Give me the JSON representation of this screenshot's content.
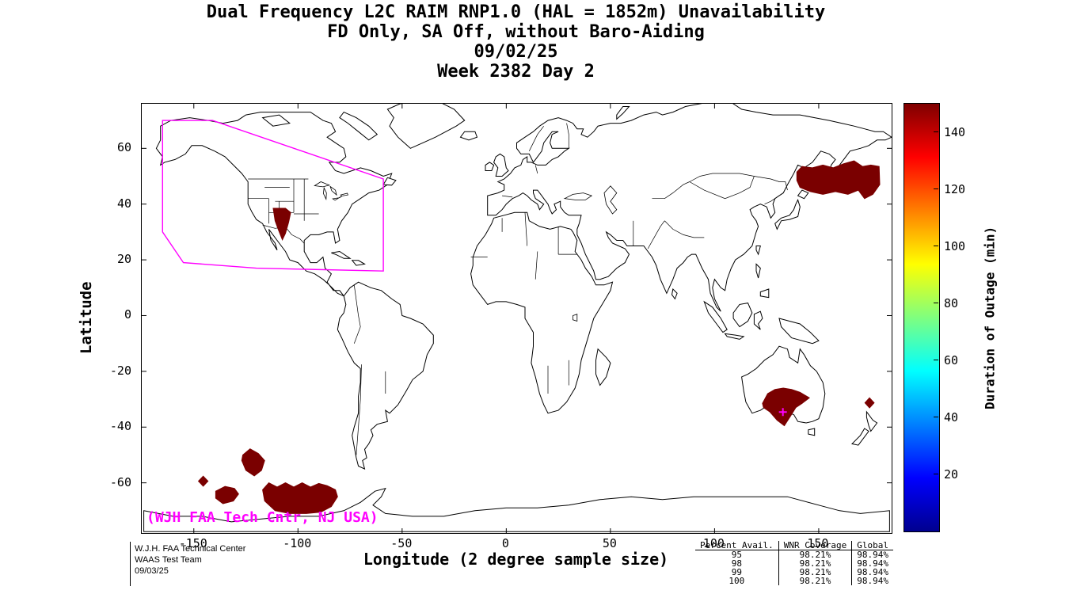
{
  "title": {
    "line1": "Dual Frequency L2C RAIM RNP1.0 (HAL = 1852m) Unavailability",
    "line2": "FD Only, SA Off, without Baro-Aiding",
    "line3": "09/02/25",
    "line4": "Week 2382 Day 2"
  },
  "credit": {
    "line1": "W.J.H. FAA Technical Center",
    "line2": "WAAS Test Team",
    "line3": "09/03/25"
  },
  "stats_table": {
    "columns": [
      "Percent Avail.",
      "WNR Coverage",
      "Global"
    ],
    "rows": [
      [
        "95",
        "98.21%",
        "98.94%"
      ],
      [
        "98",
        "98.21%",
        "98.94%"
      ],
      [
        "99",
        "98.21%",
        "98.94%"
      ],
      [
        "100",
        "98.21%",
        "98.94%"
      ]
    ]
  },
  "chart_data": {
    "type": "map",
    "projection": {
      "lon_range": [
        -175,
        185
      ],
      "lat_range": [
        -78,
        76
      ]
    },
    "x_axis": {
      "label": "Longitude (2 degree sample size)",
      "ticks": [
        -150,
        -100,
        -50,
        0,
        50,
        100,
        150
      ]
    },
    "y_axis": {
      "label": "Latitude",
      "ticks": [
        60,
        40,
        20,
        0,
        -20,
        -40,
        -60
      ]
    },
    "colorbar": {
      "label": "Duration of Outage (min)",
      "ticks": [
        20,
        40,
        60,
        80,
        100,
        120,
        140
      ],
      "value_range": [
        0,
        150
      ],
      "colormap": "jet",
      "stops": [
        [
          0,
          "#00008f"
        ],
        [
          0.125,
          "#0000ff"
        ],
        [
          0.375,
          "#00ffff"
        ],
        [
          0.5,
          "#7fff7f"
        ],
        [
          0.625,
          "#ffff00"
        ],
        [
          0.875,
          "#ff0000"
        ],
        [
          1,
          "#7f0000"
        ]
      ]
    },
    "annotation": {
      "text": "(WJH FAA Tech Cntr, NJ USA)",
      "color": "#ff00ff"
    },
    "colors": {
      "outage": "#7a0000",
      "boundary": "#ff00ff",
      "coast": "#000000"
    },
    "waas_boundary": [
      [
        -165,
        70
      ],
      [
        -141,
        70
      ],
      [
        -59,
        49
      ],
      [
        -59,
        16
      ],
      [
        -120,
        17
      ],
      [
        -155,
        19
      ],
      [
        -165,
        30
      ]
    ],
    "station_marker": {
      "lon": 132.8,
      "lat": -34.6
    },
    "outage_regions": [
      {
        "name": "us-southwest",
        "polygon": [
          [
            -111.9,
            38.5
          ],
          [
            -106,
            38.5
          ],
          [
            -103.5,
            37
          ],
          [
            -104.5,
            33.5
          ],
          [
            -106,
            29.5
          ],
          [
            -107.5,
            27.2
          ],
          [
            -109.5,
            31
          ],
          [
            -111,
            34
          ]
        ]
      },
      {
        "name": "northeast-asia",
        "polygon": [
          [
            139.5,
            51.5
          ],
          [
            142,
            53.5
          ],
          [
            147,
            53
          ],
          [
            152,
            54
          ],
          [
            157,
            53
          ],
          [
            162,
            54.5
          ],
          [
            167,
            55.5
          ],
          [
            171,
            53.5
          ],
          [
            175,
            54
          ],
          [
            179,
            53.5
          ],
          [
            179.3,
            47
          ],
          [
            176,
            43.5
          ],
          [
            172,
            42
          ],
          [
            169,
            45
          ],
          [
            164,
            43.5
          ],
          [
            158,
            44.5
          ],
          [
            152,
            43.5
          ],
          [
            146,
            44.5
          ],
          [
            141,
            46
          ],
          [
            139.5,
            48.5
          ]
        ]
      },
      {
        "name": "south-australia",
        "polygon": [
          [
            123,
            -31.5
          ],
          [
            125.5,
            -28
          ],
          [
            129,
            -26.5
          ],
          [
            133,
            -26
          ],
          [
            137,
            -26.5
          ],
          [
            141,
            -27.5
          ],
          [
            145.5,
            -29.5
          ],
          [
            142,
            -31.5
          ],
          [
            139,
            -33
          ],
          [
            136.5,
            -36
          ],
          [
            133.5,
            -39.5
          ],
          [
            130,
            -37.5
          ],
          [
            126.5,
            -34.5
          ],
          [
            123.5,
            -33
          ]
        ]
      },
      {
        "name": "tasman-diamond",
        "polygon": [
          [
            174.4,
            -29.5
          ],
          [
            176.6,
            -31.3
          ],
          [
            174.4,
            -33.1
          ],
          [
            172.2,
            -31.3
          ]
        ]
      },
      {
        "name": "south-pacific-large",
        "polygon": [
          [
            -117,
            -62.5
          ],
          [
            -114,
            -60
          ],
          [
            -110,
            -61.5
          ],
          [
            -106,
            -60
          ],
          [
            -102,
            -61.5
          ],
          [
            -98,
            -60
          ],
          [
            -94,
            -61.5
          ],
          [
            -90,
            -60.2
          ],
          [
            -86,
            -61
          ],
          [
            -82,
            -62.5
          ],
          [
            -81,
            -65
          ],
          [
            -84,
            -68.5
          ],
          [
            -89,
            -70.5
          ],
          [
            -96,
            -71
          ],
          [
            -104,
            -71
          ],
          [
            -111,
            -70
          ],
          [
            -116,
            -66.5
          ]
        ]
      },
      {
        "name": "south-pacific-mid",
        "polygon": [
          [
            -126.5,
            -50
          ],
          [
            -123,
            -47.8
          ],
          [
            -119,
            -49.5
          ],
          [
            -116,
            -52
          ],
          [
            -117.5,
            -55.5
          ],
          [
            -121,
            -57.5
          ],
          [
            -125,
            -55.5
          ],
          [
            -127,
            -52
          ]
        ]
      },
      {
        "name": "south-pacific-small",
        "polygon": [
          [
            -139.5,
            -63
          ],
          [
            -135,
            -61.3
          ],
          [
            -130.5,
            -62
          ],
          [
            -128.5,
            -64
          ],
          [
            -131,
            -66.5
          ],
          [
            -136,
            -67.5
          ],
          [
            -139.5,
            -65.5
          ]
        ]
      },
      {
        "name": "south-pacific-diamond",
        "polygon": [
          [
            -145.5,
            -57.6
          ],
          [
            -143.2,
            -59.4
          ],
          [
            -145.5,
            -61.2
          ],
          [
            -147.8,
            -59.4
          ]
        ]
      }
    ]
  }
}
